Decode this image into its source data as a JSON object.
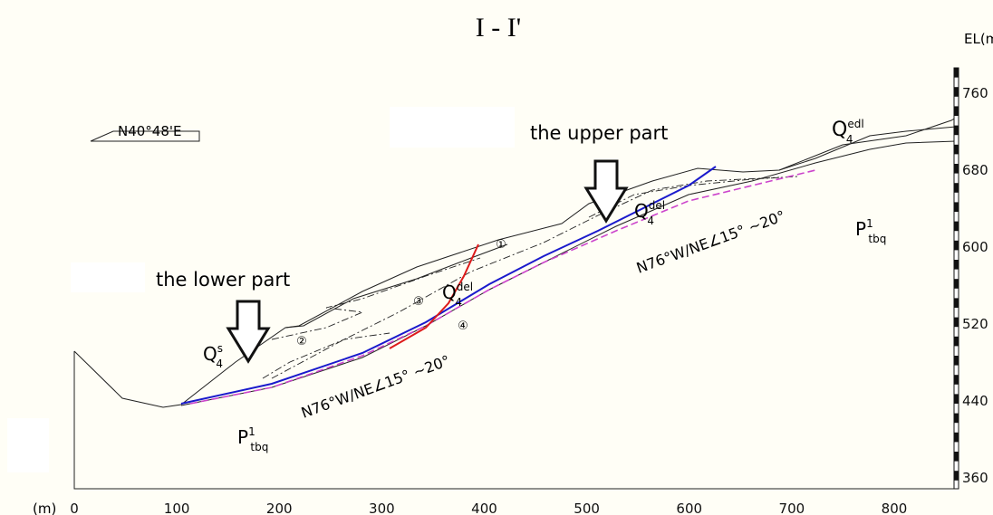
{
  "title": "I - I'",
  "axes": {
    "x_unit": "(m)",
    "y_unit": "EL(m)",
    "x_ticks": [
      0,
      100,
      200,
      300,
      400,
      500,
      600,
      700,
      800
    ],
    "y_ticks": [
      360,
      440,
      520,
      600,
      680,
      760
    ]
  },
  "direction": "N40°48'E",
  "callouts": {
    "upper": "the upper part",
    "lower": "the lower part"
  },
  "attitudes": [
    "N76°W/NE∠15° ~20°",
    "N76°W/NE∠15° ~20°"
  ],
  "strata": [
    {
      "main": "Q",
      "sub": "4",
      "sup": "edl"
    },
    {
      "main": "Q",
      "sub": "4",
      "sup": "del"
    },
    {
      "main": "Q",
      "sub": "4",
      "sup": "del"
    },
    {
      "main": "Q",
      "sub": "4",
      "sup": "s"
    },
    {
      "main": "P",
      "sub": "tbq",
      "sup": "1"
    },
    {
      "main": "P",
      "sub": "tbq",
      "sup": "1"
    }
  ],
  "zones": [
    "①",
    "②",
    "③",
    "④"
  ]
}
